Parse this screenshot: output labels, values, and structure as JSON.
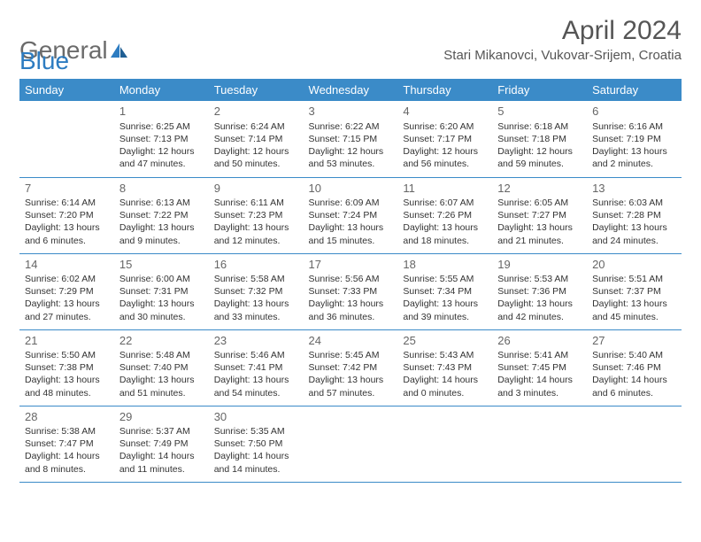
{
  "brand": {
    "part1": "General",
    "part2": "Blue"
  },
  "title": "April 2024",
  "location": "Stari Mikanovci, Vukovar-Srijem, Croatia",
  "colors": {
    "header_bg": "#3b8bc8",
    "header_text": "#ffffff",
    "border": "#3b8bc8",
    "text": "#333333",
    "title_text": "#555555",
    "logo_gray": "#6b6b6b",
    "logo_blue": "#2d7cc1",
    "background": "#ffffff"
  },
  "weekdays": [
    "Sunday",
    "Monday",
    "Tuesday",
    "Wednesday",
    "Thursday",
    "Friday",
    "Saturday"
  ],
  "weeks": [
    [
      null,
      {
        "d": "1",
        "sr": "6:25 AM",
        "ss": "7:13 PM",
        "dl": "12 hours and 47 minutes."
      },
      {
        "d": "2",
        "sr": "6:24 AM",
        "ss": "7:14 PM",
        "dl": "12 hours and 50 minutes."
      },
      {
        "d": "3",
        "sr": "6:22 AM",
        "ss": "7:15 PM",
        "dl": "12 hours and 53 minutes."
      },
      {
        "d": "4",
        "sr": "6:20 AM",
        "ss": "7:17 PM",
        "dl": "12 hours and 56 minutes."
      },
      {
        "d": "5",
        "sr": "6:18 AM",
        "ss": "7:18 PM",
        "dl": "12 hours and 59 minutes."
      },
      {
        "d": "6",
        "sr": "6:16 AM",
        "ss": "7:19 PM",
        "dl": "13 hours and 2 minutes."
      }
    ],
    [
      {
        "d": "7",
        "sr": "6:14 AM",
        "ss": "7:20 PM",
        "dl": "13 hours and 6 minutes."
      },
      {
        "d": "8",
        "sr": "6:13 AM",
        "ss": "7:22 PM",
        "dl": "13 hours and 9 minutes."
      },
      {
        "d": "9",
        "sr": "6:11 AM",
        "ss": "7:23 PM",
        "dl": "13 hours and 12 minutes."
      },
      {
        "d": "10",
        "sr": "6:09 AM",
        "ss": "7:24 PM",
        "dl": "13 hours and 15 minutes."
      },
      {
        "d": "11",
        "sr": "6:07 AM",
        "ss": "7:26 PM",
        "dl": "13 hours and 18 minutes."
      },
      {
        "d": "12",
        "sr": "6:05 AM",
        "ss": "7:27 PM",
        "dl": "13 hours and 21 minutes."
      },
      {
        "d": "13",
        "sr": "6:03 AM",
        "ss": "7:28 PM",
        "dl": "13 hours and 24 minutes."
      }
    ],
    [
      {
        "d": "14",
        "sr": "6:02 AM",
        "ss": "7:29 PM",
        "dl": "13 hours and 27 minutes."
      },
      {
        "d": "15",
        "sr": "6:00 AM",
        "ss": "7:31 PM",
        "dl": "13 hours and 30 minutes."
      },
      {
        "d": "16",
        "sr": "5:58 AM",
        "ss": "7:32 PM",
        "dl": "13 hours and 33 minutes."
      },
      {
        "d": "17",
        "sr": "5:56 AM",
        "ss": "7:33 PM",
        "dl": "13 hours and 36 minutes."
      },
      {
        "d": "18",
        "sr": "5:55 AM",
        "ss": "7:34 PM",
        "dl": "13 hours and 39 minutes."
      },
      {
        "d": "19",
        "sr": "5:53 AM",
        "ss": "7:36 PM",
        "dl": "13 hours and 42 minutes."
      },
      {
        "d": "20",
        "sr": "5:51 AM",
        "ss": "7:37 PM",
        "dl": "13 hours and 45 minutes."
      }
    ],
    [
      {
        "d": "21",
        "sr": "5:50 AM",
        "ss": "7:38 PM",
        "dl": "13 hours and 48 minutes."
      },
      {
        "d": "22",
        "sr": "5:48 AM",
        "ss": "7:40 PM",
        "dl": "13 hours and 51 minutes."
      },
      {
        "d": "23",
        "sr": "5:46 AM",
        "ss": "7:41 PM",
        "dl": "13 hours and 54 minutes."
      },
      {
        "d": "24",
        "sr": "5:45 AM",
        "ss": "7:42 PM",
        "dl": "13 hours and 57 minutes."
      },
      {
        "d": "25",
        "sr": "5:43 AM",
        "ss": "7:43 PM",
        "dl": "14 hours and 0 minutes."
      },
      {
        "d": "26",
        "sr": "5:41 AM",
        "ss": "7:45 PM",
        "dl": "14 hours and 3 minutes."
      },
      {
        "d": "27",
        "sr": "5:40 AM",
        "ss": "7:46 PM",
        "dl": "14 hours and 6 minutes."
      }
    ],
    [
      {
        "d": "28",
        "sr": "5:38 AM",
        "ss": "7:47 PM",
        "dl": "14 hours and 8 minutes."
      },
      {
        "d": "29",
        "sr": "5:37 AM",
        "ss": "7:49 PM",
        "dl": "14 hours and 11 minutes."
      },
      {
        "d": "30",
        "sr": "5:35 AM",
        "ss": "7:50 PM",
        "dl": "14 hours and 14 minutes."
      },
      null,
      null,
      null,
      null
    ]
  ],
  "labels": {
    "sunrise": "Sunrise: ",
    "sunset": "Sunset: ",
    "daylight": "Daylight: "
  }
}
